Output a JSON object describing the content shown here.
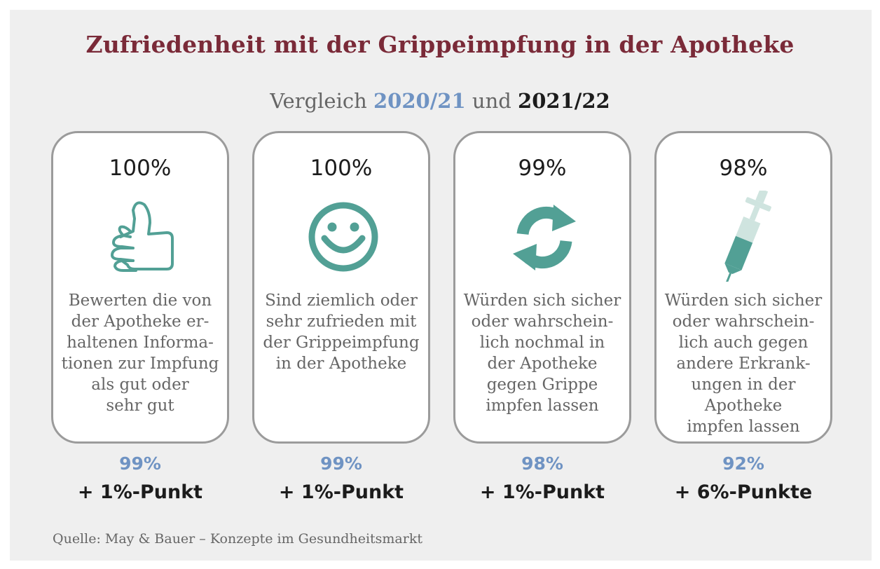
{
  "title": "Zufriedenheit mit der Grippeimpfung in der Apotheke",
  "subtitle": {
    "prefix": "Vergleich ",
    "year_prev": "2020/21",
    "middle": " und ",
    "year_curr": "2021/22"
  },
  "colors": {
    "title": "#7a2a38",
    "year_prev": "#6f93c3",
    "icon": "#52a095",
    "icon_light": "#cfe4df"
  },
  "cards": [
    {
      "icon": "thumbs-up-icon",
      "value": "100%",
      "text": "Bewerten die von\nder Apotheke er-\nhaltenen Informa-\ntionen zur Impfung\nals gut oder\nsehr gut",
      "prev_value": "99%",
      "change": "+ 1%-Punkt"
    },
    {
      "icon": "smiley-icon",
      "value": "100%",
      "text": "Sind ziemlich oder\nsehr zufrieden mit\nder Grippeimpfung\nin der Apotheke",
      "prev_value": "99%",
      "change": "+ 1%-Punkt"
    },
    {
      "icon": "refresh-icon",
      "value": "99%",
      "text": "Würden sich sicher\noder wahrschein-\nlich nochmal in\nder Apotheke\ngegen Grippe\nimpfen lassen",
      "prev_value": "98%",
      "change": "+ 1%-Punkt"
    },
    {
      "icon": "syringe-icon",
      "value": "98%",
      "text": "Würden sich sicher\noder wahrschein-\nlich auch gegen\nandere Erkrank-\nungen in der\nApotheke\nimpfen lassen",
      "prev_value": "92%",
      "change": "+ 6%-Punkte"
    }
  ],
  "source": "Quelle: May & Bauer – Konzepte im Gesundheitsmarkt"
}
